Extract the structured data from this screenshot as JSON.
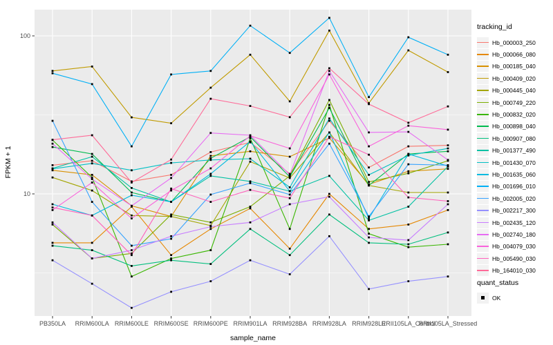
{
  "chart_data": {
    "type": "line",
    "xlabel": "sample_name",
    "ylabel": "FPKM + 1",
    "y_scale": "log10",
    "ylim": [
      1.68,
      147
    ],
    "y_major_ticks": [
      10,
      100
    ],
    "y_minor_gridlines": [
      3.162,
      31.62
    ],
    "grid": "on",
    "legend_position": "right",
    "categories": [
      "PB350LA",
      "RRIM600LA",
      "RRIM600LE",
      "RRIM600SE",
      "RRIM600PE",
      "RRIM901LA",
      "RRIM928BA",
      "RRIM928LA",
      "RRIM928LE",
      "RRII105LA_Control",
      "RRII105LA_Stressed"
    ],
    "series": [
      {
        "name": "Hb_000003_250",
        "color": "#F8766D",
        "values": [
          15.2,
          16.2,
          12.0,
          13.2,
          18.4,
          21.2,
          13.4,
          29.0,
          14.7,
          20.0,
          20.3
        ]
      },
      {
        "name": "Hb_000066_080",
        "color": "#E58700",
        "values": [
          4.9,
          4.9,
          8.3,
          4.1,
          6.0,
          8.1,
          4.5,
          10.0,
          6.0,
          6.4,
          7.9
        ]
      },
      {
        "name": "Hb_000185_040",
        "color": "#D89000",
        "values": [
          14.1,
          13.2,
          8.4,
          7.2,
          17.4,
          18.6,
          17.2,
          22.6,
          11.5,
          13.9,
          14.4
        ]
      },
      {
        "name": "Hb_000409_020",
        "color": "#C09B00",
        "values": [
          60,
          64,
          30.5,
          28,
          47,
          76,
          38.5,
          108,
          37.5,
          81,
          59
        ]
      },
      {
        "name": "Hb_000445_040",
        "color": "#A3A500",
        "values": [
          12.7,
          10.5,
          7.3,
          7.2,
          6.3,
          16.0,
          12.6,
          24.5,
          11.3,
          10.2,
          10.2
        ]
      },
      {
        "name": "Hb_000749_220",
        "color": "#7CAE00",
        "values": [
          6.4,
          3.9,
          4.2,
          7.4,
          6.6,
          8.3,
          13.0,
          39.3,
          11.9,
          13.5,
          16.2
        ]
      },
      {
        "name": "Hb_000832_020",
        "color": "#39B600",
        "values": [
          21.9,
          12.7,
          3.0,
          3.9,
          4.4,
          22.5,
          6.0,
          36.6,
          5.6,
          4.6,
          4.8
        ]
      },
      {
        "name": "Hb_000898_040",
        "color": "#00BB4E",
        "values": [
          19.8,
          17.9,
          10.2,
          8.9,
          16.8,
          23.0,
          12.8,
          35.0,
          11.3,
          17.9,
          18.6
        ]
      },
      {
        "name": "Hb_000907_080",
        "color": "#00BF7D",
        "values": [
          4.7,
          4.4,
          3.5,
          3.8,
          3.6,
          6.0,
          4.1,
          7.4,
          4.9,
          4.8,
          5.7
        ]
      },
      {
        "name": "Hb_001377_490",
        "color": "#00C1A3",
        "values": [
          14.5,
          17.2,
          10.9,
          8.9,
          13.0,
          12.0,
          10.4,
          13.0,
          6.8,
          8.3,
          14.9
        ]
      },
      {
        "name": "Hb_001430_070",
        "color": "#00BFC4",
        "values": [
          14.4,
          15.6,
          14.1,
          15.7,
          16.4,
          16.7,
          11.0,
          30.0,
          13.2,
          17.5,
          19.4
        ]
      },
      {
        "name": "Hb_001635_060",
        "color": "#00BAE0",
        "values": [
          8.6,
          7.3,
          9.8,
          8.9,
          13.4,
          21.5,
          10.4,
          24.5,
          7.0,
          17.9,
          15.0
        ]
      },
      {
        "name": "Hb_001696_010",
        "color": "#00B0F6",
        "values": [
          58,
          49.5,
          20,
          57,
          60,
          116,
          78,
          130,
          41,
          98,
          76
        ]
      },
      {
        "name": "Hb_002005_020",
        "color": "#35A2FF",
        "values": [
          29,
          8.9,
          4.7,
          5.2,
          9.9,
          11.7,
          9.9,
          20.8,
          7.2,
          15.4,
          15.2
        ]
      },
      {
        "name": "Hb_002217_300",
        "color": "#9590FF",
        "values": [
          3.8,
          2.7,
          1.9,
          2.4,
          2.8,
          3.8,
          3.1,
          5.4,
          2.5,
          2.8,
          3.0
        ]
      },
      {
        "name": "Hb_002435_120",
        "color": "#C77CFF",
        "values": [
          6.6,
          3.9,
          4.4,
          5.4,
          6.2,
          6.6,
          8.6,
          9.6,
          5.3,
          5.1,
          8.6
        ]
      },
      {
        "name": "Hb_002740_180",
        "color": "#E76BF3",
        "values": [
          20.8,
          12.4,
          8.4,
          12.6,
          24.3,
          23.5,
          13.2,
          60,
          24.5,
          24.7,
          16.4
        ]
      },
      {
        "name": "Hb_004079_030",
        "color": "#FA62DB",
        "values": [
          7.9,
          11.8,
          7.0,
          10.5,
          14.5,
          23.3,
          19.4,
          57,
          20.0,
          27.0,
          25.5
        ]
      },
      {
        "name": "Hb_005490_030",
        "color": "#FF62BC",
        "values": [
          8.2,
          7.3,
          4.1,
          10.8,
          8.9,
          10.6,
          9.4,
          23,
          17.7,
          9.5,
          9.0
        ]
      },
      {
        "name": "Hb_164010_030",
        "color": "#FF6A98",
        "values": [
          22,
          23.5,
          11.8,
          16.5,
          40,
          36,
          30.6,
          62.4,
          37,
          28.2,
          35.8
        ]
      }
    ],
    "legend": {
      "tracking_title": "tracking_id",
      "quant_title": "quant_status",
      "quant_items": [
        {
          "label": "OK"
        }
      ]
    },
    "colors": {
      "panel_bg": "#EBEBEB",
      "grid": "#FFFFFF",
      "axis_text": "#4D4D4D",
      "tick_mark": "#333333",
      "point": "#000000",
      "legend_key_bg": "#F2F2F2"
    }
  }
}
